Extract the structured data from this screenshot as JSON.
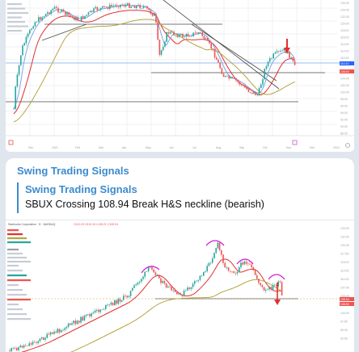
{
  "app": {
    "theme_bg": "#dfe6ed"
  },
  "top_chart": {
    "x_ticks": [
      "Dec",
      "2021",
      "Feb",
      "Mar",
      "Apr",
      "May",
      "Jun",
      "Jul",
      "Aug",
      "Sep",
      "Oct",
      "Nov",
      "Dec",
      "2022"
    ],
    "y_ticks": [
      "126.00",
      "124.00",
      "122.00",
      "120.00",
      "118.00",
      "116.00",
      "114.00",
      "112.00",
      "110.00",
      "108.00",
      "106.00",
      "104.00",
      "102.00",
      "100.00",
      "98.00",
      "96.00",
      "94.00",
      "92.00",
      "90.00",
      "88.00"
    ],
    "price_badge": "110.10",
    "price_badge2": "108.94",
    "colors": {
      "up": "#26a69a",
      "down": "#ef5350",
      "ma_red": "#e03030",
      "ma_blue": "#7aa6e8",
      "ma_olive": "#b5a642",
      "line": "#4a4a4a",
      "signal": "#e03030"
    }
  },
  "message": {
    "channel": "Swing Trading Signals",
    "reply_title": "Swing Trading Signals",
    "reply_text": "SBUX Crossing 108.94 Break H&S neckline (bearish)"
  },
  "bottom_chart": {
    "symbol_line": "Starbucks Corporation · D · NASDAQ",
    "ohlc_line": "O110.20 H110.94 L108.21 C108.94",
    "price_badge": "108.94",
    "price_badge2": "108.50",
    "y_ticks": [
      "125.00",
      "122.50",
      "120.00",
      "117.50",
      "115.00",
      "112.50",
      "110.00",
      "107.50",
      "105.00",
      "102.50",
      "100.00",
      "97.50",
      "95.00",
      "92.50"
    ],
    "colors": {
      "up": "#26a69a",
      "down": "#ef5350",
      "ma_red": "#e03030",
      "ma_olive": "#b5a642",
      "hs": "#d11fd1",
      "signal": "#e03030"
    }
  }
}
